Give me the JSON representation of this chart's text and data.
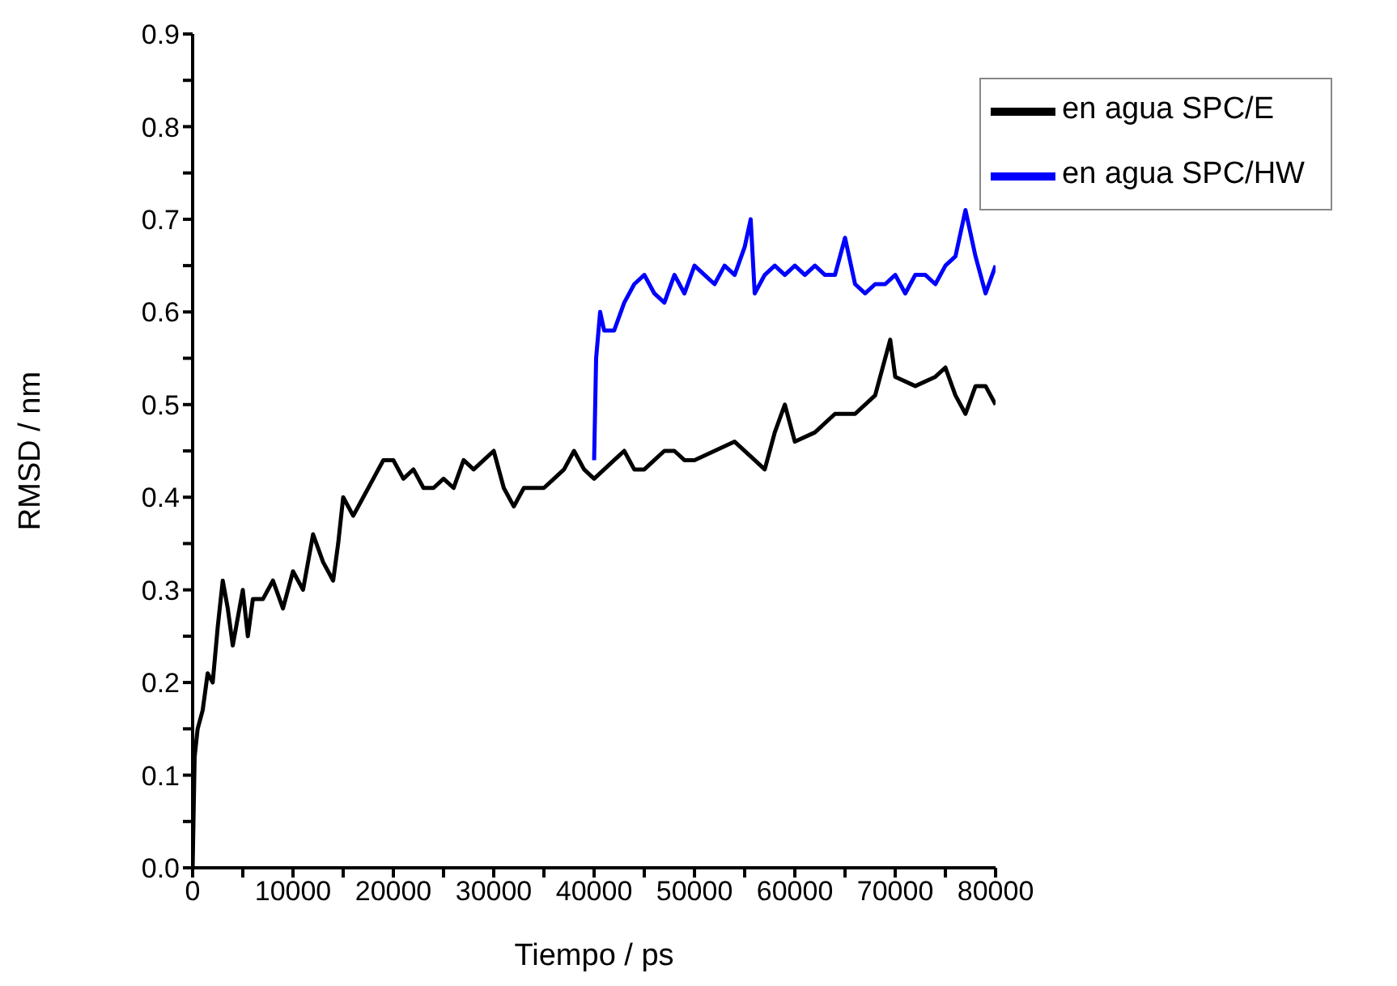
{
  "chart_data": {
    "type": "line",
    "xlabel": "Tiempo / ps",
    "ylabel": "RMSD / nm",
    "xlim": [
      0,
      80000
    ],
    "xticks": [
      0,
      {
        "value": 5000,
        "label": null
      },
      10000,
      {
        "value": 15000,
        "label": null
      },
      20000,
      {
        "value": 25000,
        "label": null
      },
      30000,
      {
        "value": 35000,
        "label": null
      },
      40000,
      {
        "value": 45000,
        "label": null
      },
      50000,
      {
        "value": 55000,
        "label": null
      },
      60000,
      {
        "value": 65000,
        "label": null
      },
      70000,
      {
        "value": 75000,
        "label": null
      },
      80000
    ],
    "ylim": [
      0,
      0.9
    ],
    "yticks": [
      {
        "value": 0,
        "label": "0.0"
      },
      {
        "value": 0.05,
        "label": null
      },
      0.1,
      {
        "value": 0.15,
        "label": null
      },
      0.2,
      {
        "value": 0.25,
        "label": null
      },
      0.3,
      {
        "value": 0.35,
        "label": null
      },
      0.4,
      {
        "value": 0.45,
        "label": null
      },
      0.5,
      {
        "value": 0.55,
        "label": null
      },
      0.6,
      {
        "value": 0.65,
        "label": null
      },
      0.7,
      {
        "value": 0.75,
        "label": null
      },
      0.8,
      {
        "value": 0.85,
        "label": null
      },
      0.9
    ],
    "legend": "top right",
    "grid": false,
    "marker": "none",
    "line_style": "solid",
    "series": [
      {
        "name": "en agua SPC/HW",
        "color": "#0000ff",
        "x": [
          40000,
          40200,
          40600,
          41000,
          42000,
          43000,
          44000,
          45000,
          46000,
          47000,
          48000,
          49000,
          50000,
          51000,
          52000,
          53000,
          54000,
          55000,
          55600,
          56000,
          57000,
          58000,
          59000,
          60000,
          61000,
          62000,
          63000,
          64000,
          65000,
          66000,
          67000,
          68000,
          69000,
          70000,
          71000,
          72000,
          73000,
          74000,
          75000,
          76000,
          77000,
          78000,
          79000,
          80000
        ],
        "values": [
          0.44,
          0.55,
          0.6,
          0.58,
          0.58,
          0.61,
          0.63,
          0.64,
          0.62,
          0.61,
          0.64,
          0.62,
          0.65,
          0.64,
          0.63,
          0.65,
          0.64,
          0.67,
          0.7,
          0.62,
          0.64,
          0.65,
          0.64,
          0.65,
          0.64,
          0.65,
          0.64,
          0.64,
          0.68,
          0.63,
          0.62,
          0.63,
          0.63,
          0.64,
          0.62,
          0.64,
          0.64,
          0.63,
          0.65,
          0.66,
          0.71,
          0.66,
          0.62,
          0.65
        ]
      },
      {
        "name": "en agua SPC/E",
        "color": "#000000",
        "x": [
          0,
          200,
          500,
          1000,
          1500,
          2000,
          2500,
          3000,
          3500,
          4000,
          5000,
          5500,
          6000,
          7000,
          8000,
          9000,
          10000,
          11000,
          12000,
          13000,
          14000,
          14500,
          15000,
          16000,
          17000,
          18000,
          19000,
          20000,
          21000,
          22000,
          23000,
          24000,
          25000,
          26000,
          27000,
          28000,
          29000,
          30000,
          31000,
          32000,
          33000,
          34000,
          35000,
          36000,
          37000,
          38000,
          39000,
          40000,
          41000,
          42000,
          43000,
          44000,
          45000,
          46000,
          47000,
          48000,
          49000,
          50000,
          52000,
          54000,
          56000,
          57000,
          58000,
          59000,
          60000,
          62000,
          64000,
          66000,
          68000,
          69500,
          70000,
          72000,
          74000,
          75000,
          76000,
          77000,
          78000,
          79000,
          80000
        ],
        "values": [
          0.0,
          0.12,
          0.15,
          0.17,
          0.21,
          0.2,
          0.26,
          0.31,
          0.28,
          0.24,
          0.3,
          0.25,
          0.29,
          0.29,
          0.31,
          0.28,
          0.32,
          0.3,
          0.36,
          0.33,
          0.31,
          0.35,
          0.4,
          0.38,
          0.4,
          0.42,
          0.44,
          0.44,
          0.42,
          0.43,
          0.41,
          0.41,
          0.42,
          0.41,
          0.44,
          0.43,
          0.44,
          0.45,
          0.41,
          0.39,
          0.41,
          0.41,
          0.41,
          0.42,
          0.43,
          0.45,
          0.43,
          0.42,
          0.43,
          0.44,
          0.45,
          0.43,
          0.43,
          0.44,
          0.45,
          0.45,
          0.44,
          0.44,
          0.45,
          0.46,
          0.44,
          0.43,
          0.47,
          0.5,
          0.46,
          0.47,
          0.49,
          0.49,
          0.51,
          0.57,
          0.53,
          0.52,
          0.53,
          0.54,
          0.51,
          0.49,
          0.52,
          0.52,
          0.5
        ]
      }
    ]
  }
}
